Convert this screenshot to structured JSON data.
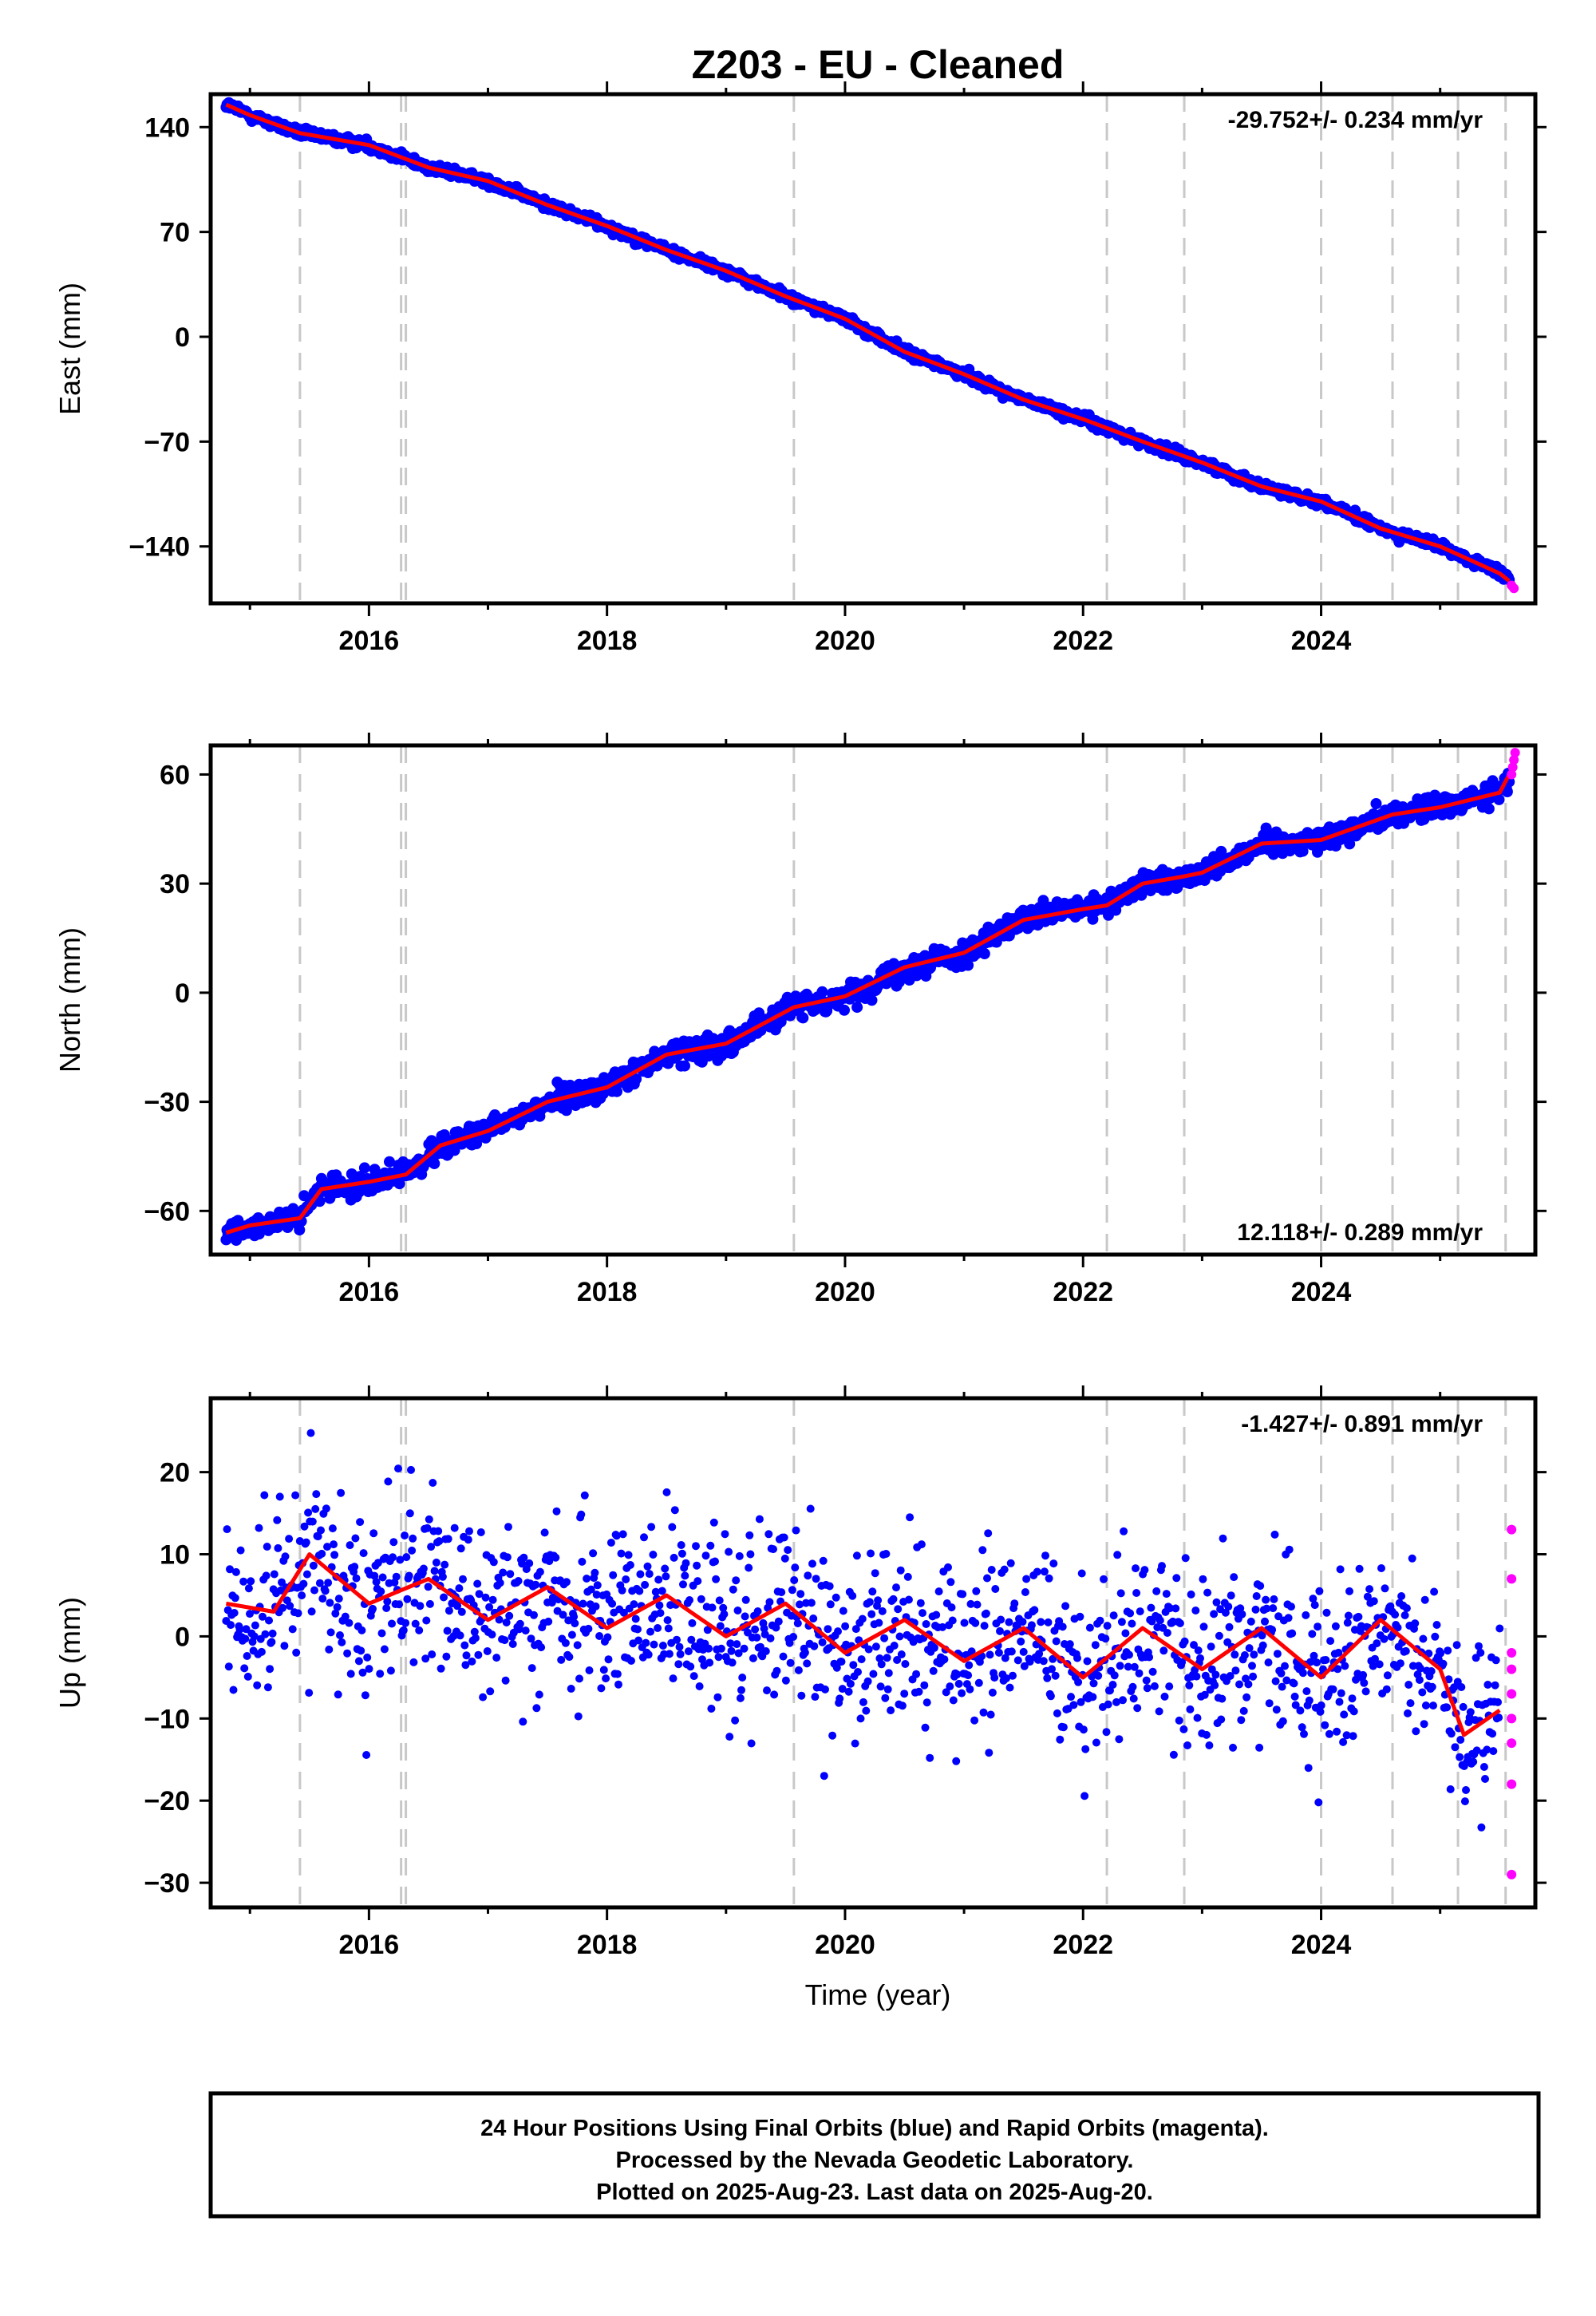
{
  "chart_data": {
    "type": "scatter",
    "title": "Z203  - EU - Cleaned",
    "xlabel": "Time (year)",
    "x_ticks": [
      "2016",
      "2018",
      "2020",
      "2022",
      "2024"
    ],
    "xlim": [
      2014.67,
      2025.8
    ],
    "grid": false,
    "colors": {
      "final": "#0000ff",
      "rapid": "#ff00ff",
      "fit": "#ff0000",
      "events": "#c8c8c8"
    },
    "event_lines": [
      2015.42,
      2016.27,
      2016.31,
      2019.57,
      2022.2,
      2022.85,
      2024.0,
      2024.6,
      2025.15,
      2025.55
    ],
    "panels": [
      {
        "ylabel": "East (mm)",
        "ylim": [
          -178,
          162
        ],
        "y_ticks": [
          -140,
          -70,
          0,
          70,
          140
        ],
        "rate_label": "-29.752+/- 0.234 mm/yr",
        "rate_position": "top-right",
        "series": [
          {
            "name": "Final Orbits",
            "x": [
              2014.8,
              2015.0,
              2015.42,
              2016.0,
              2016.5,
              2017.0,
              2017.5,
              2018.0,
              2018.5,
              2019.0,
              2019.5,
              2020.0,
              2020.5,
              2021.0,
              2021.5,
              2022.0,
              2022.5,
              2023.0,
              2023.5,
              2024.0,
              2024.5,
              2025.0,
              2025.5,
              2025.58
            ],
            "y": [
              155,
              148,
              136,
              128,
              113,
              104,
              88,
              74,
              58,
              44,
              27,
              12,
              -10,
              -25,
              -42,
              -55,
              -70,
              -84,
              -100,
              -110,
              -128,
              -140,
              -158,
              -163
            ]
          },
          {
            "name": "Rapid Orbits",
            "x": [
              2025.6,
              2025.62
            ],
            "y": [
              -166,
              -168
            ]
          }
        ]
      },
      {
        "ylabel": "North (mm)",
        "ylim": [
          -72,
          68
        ],
        "y_ticks": [
          -60,
          -30,
          0,
          30,
          60
        ],
        "rate_label": "12.118+/- 0.289 mm/yr",
        "rate_position": "bottom-right",
        "series": [
          {
            "name": "Final Orbits",
            "x": [
              2014.8,
              2015.0,
              2015.42,
              2015.6,
              2016.0,
              2016.31,
              2016.6,
              2017.0,
              2017.5,
              2018.0,
              2018.5,
              2019.0,
              2019.57,
              2020.0,
              2020.5,
              2021.0,
              2021.5,
              2022.0,
              2022.2,
              2022.5,
              2022.85,
              2023.0,
              2023.5,
              2024.0,
              2024.6,
              2025.0,
              2025.5,
              2025.58
            ],
            "y": [
              -66,
              -64,
              -62,
              -54,
              -52,
              -50,
              -42,
              -38,
              -30,
              -26,
              -17,
              -14,
              -4,
              -1,
              7,
              11,
              20,
              23,
              24,
              30,
              32,
              33,
              41,
              42,
              49,
              51,
              55,
              60
            ]
          },
          {
            "name": "Rapid Orbits",
            "x": [
              2025.6,
              2025.61,
              2025.62,
              2025.63
            ],
            "y": [
              60,
              62,
              64,
              66
            ]
          }
        ]
      },
      {
        "ylabel": "Up (mm)",
        "ylim": [
          -33,
          29
        ],
        "y_ticks": [
          -30,
          -20,
          -10,
          0,
          10,
          20
        ],
        "rate_label": "-1.427+/- 0.891 mm/yr",
        "rate_position": "top-right",
        "series": [
          {
            "name": "Final Orbits",
            "x": [
              2014.8,
              2015.2,
              2015.5,
              2016.0,
              2016.5,
              2017.0,
              2017.5,
              2018.0,
              2018.5,
              2019.0,
              2019.5,
              2020.0,
              2020.5,
              2021.0,
              2021.5,
              2022.0,
              2022.5,
              2023.0,
              2023.5,
              2024.0,
              2024.5,
              2025.0,
              2025.2,
              2025.5
            ],
            "y": [
              4,
              3,
              10,
              4,
              7,
              2,
              6,
              1,
              5,
              0,
              4,
              -2,
              2,
              -3,
              1,
              -5,
              1,
              -4,
              1,
              -5,
              2,
              -4,
              -12,
              -9
            ]
          },
          {
            "name": "Rapid Orbits",
            "x": [
              2025.6,
              2025.6,
              2025.6,
              2025.6,
              2025.6,
              2025.6,
              2025.6,
              2025.6,
              2025.6
            ],
            "y": [
              13,
              7,
              -2,
              -4,
              -7,
              -10,
              -13,
              -18,
              -29
            ]
          }
        ]
      }
    ]
  },
  "caption": {
    "line1": "24 Hour Positions Using Final Orbits (blue) and Rapid Orbits (magenta).",
    "line2": "Processed by the Nevada Geodetic Laboratory.",
    "line3": "Plotted on 2025-Aug-23. Last data on 2025-Aug-20."
  }
}
